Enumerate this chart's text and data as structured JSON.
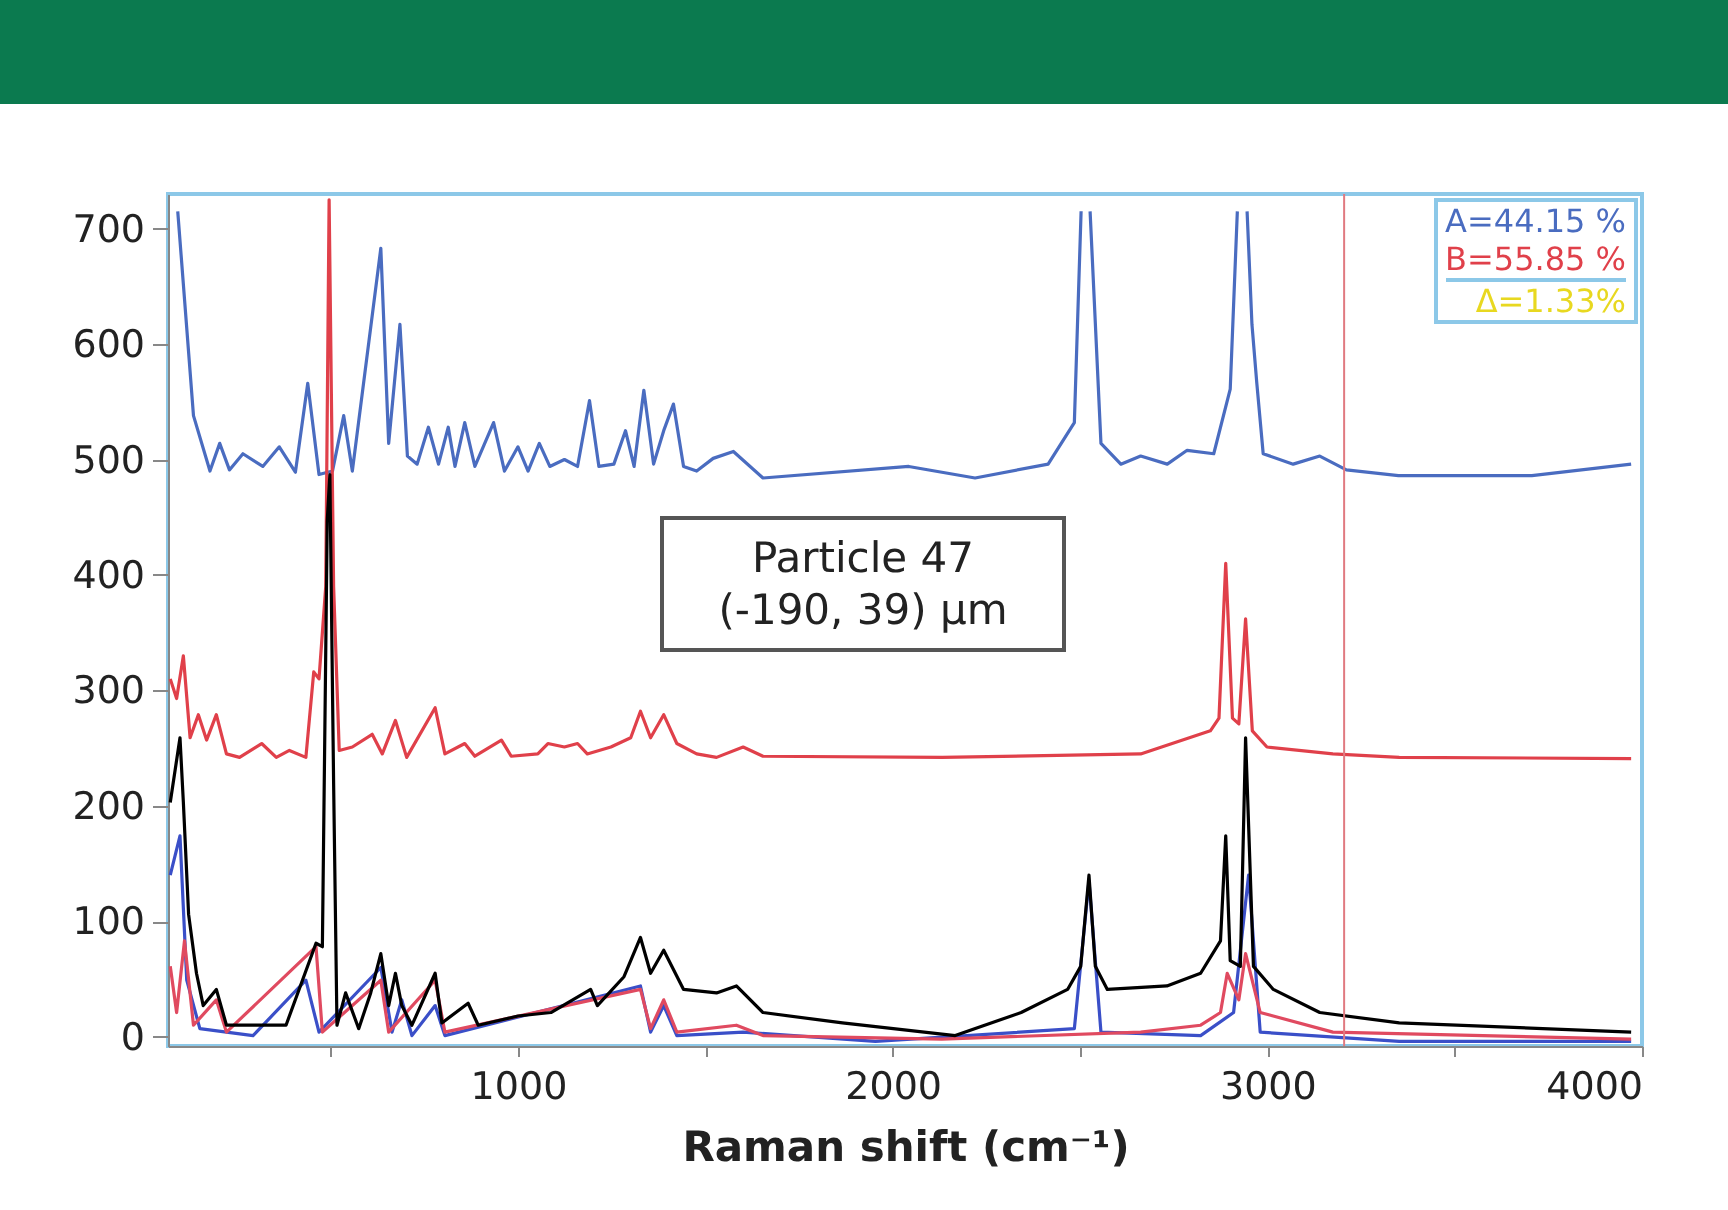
{
  "chart_data": {
    "type": "line",
    "xlabel": "Raman shift (cm⁻¹)",
    "xlim": [
      66,
      4000
    ],
    "ylim": [
      -8,
      730
    ],
    "xticks": [
      {
        "value": 500,
        "label": null
      },
      1000,
      {
        "value": 1500,
        "label": null
      },
      2000,
      {
        "value": 2500,
        "label": null
      },
      3000,
      {
        "value": 3500,
        "label": null
      },
      4000
    ],
    "yticks": [
      0,
      100,
      200,
      300,
      400,
      500,
      600,
      700
    ],
    "grid": false,
    "legend": "top right",
    "marker": "none",
    "line_style": "solid",
    "annotations": [
      "Particle 47\n(-190, 39) µm",
      "Δ=1.33%"
    ],
    "ref_lines": [
      {
        "axis": "x",
        "value": 3205,
        "color": "#e07a80"
      }
    ],
    "series": [
      {
        "name": "A=44.15 %",
        "color": "#4a6cc0",
        "x": [
          92,
          134,
          178,
          204,
          230,
          266,
          319,
          363,
          406,
          439,
          469,
          505,
          535,
          558,
          634,
          655,
          685,
          705,
          731,
          761,
          788,
          814,
          832,
          858,
          885,
          935,
          964,
          1000,
          1027,
          1057,
          1085,
          1124,
          1159,
          1191,
          1216,
          1256,
          1287,
          1310,
          1336,
          1362,
          1389,
          1415,
          1442,
          1477,
          1521,
          1575,
          1654,
          2043,
          2220,
          2415,
          2485,
          2503,
          2506,
          2524,
          2527,
          2556,
          2609,
          2662,
          2733,
          2786,
          2857,
          2901,
          2920,
          2924,
          2942,
          2946,
          2959,
          2972,
          2989,
          3069,
          3140,
          3211,
          3350,
          3706,
          3971
        ],
        "values": [
          715,
          538,
          490,
          514,
          491,
          505,
          494,
          511,
          489,
          566,
          487,
          490,
          538,
          490,
          683,
          514,
          617,
          503,
          496,
          528,
          496,
          528,
          494,
          532,
          494,
          532,
          490,
          511,
          490,
          514,
          494,
          500,
          494,
          551,
          494,
          496,
          525,
          494,
          560,
          496,
          525,
          548,
          494,
          490,
          501,
          507,
          484,
          494,
          484,
          496,
          532,
          715,
          null,
          null,
          715,
          514,
          496,
          503,
          496,
          508,
          505,
          561,
          715,
          null,
          null,
          715,
          617,
          566,
          505,
          496,
          503,
          491,
          486,
          486,
          496
        ]
      },
      {
        "name": "B=55.85 %",
        "color": "#e0404a",
        "x": [
          72,
          89,
          107,
          125,
          147,
          169,
          195,
          222,
          257,
          316,
          355,
          390,
          434,
          455,
          469,
          487,
          496,
          508,
          523,
          558,
          611,
          638,
          673,
          703,
          779,
          805,
          858,
          885,
          956,
          982,
          1053,
          1080,
          1124,
          1159,
          1185,
          1248,
          1301,
          1327,
          1354,
          1389,
          1424,
          1477,
          1530,
          1601,
          1654,
          2132,
          2662,
          2848,
          2871,
          2889,
          2907,
          2924,
          2942,
          2960,
          2999,
          3175,
          3352,
          3971
        ],
        "values": [
          310,
          293,
          330,
          259,
          279,
          257,
          279,
          245,
          242,
          254,
          242,
          248,
          242,
          316,
          310,
          390,
          725,
          390,
          248,
          251,
          262,
          245,
          274,
          242,
          285,
          245,
          254,
          243,
          257,
          243,
          245,
          254,
          251,
          254,
          245,
          251,
          259,
          282,
          259,
          279,
          254,
          245,
          242,
          251,
          243,
          242,
          245,
          265,
          276,
          410,
          276,
          271,
          362,
          265,
          251,
          245,
          242,
          241
        ]
      },
      {
        "color": "#3a4fc8",
        "x": [
          72,
          98,
          116,
          151,
          293,
          434,
          469,
          634,
          664,
          690,
          717,
          779,
          805,
          1327,
          1354,
          1389,
          1424,
          1601,
          1954,
          2485,
          2524,
          2556,
          2822,
          2910,
          2950,
          2981,
          3352,
          3971
        ],
        "values": [
          140,
          174,
          49,
          7,
          1,
          49,
          4,
          60,
          4,
          32,
          1,
          27,
          1,
          44,
          4,
          27,
          1,
          4,
          -4,
          7,
          135,
          4,
          1,
          21,
          140,
          4,
          -4,
          -4
        ]
      },
      {
        "color": "#e04a60",
        "x": [
          72,
          89,
          110,
          134,
          195,
          222,
          461,
          478,
          634,
          655,
          779,
          805,
          1327,
          1354,
          1389,
          1424,
          1583,
          1654,
          2131,
          2662,
          2822,
          2875,
          2893,
          2924,
          2942,
          2981,
          3175,
          3971
        ],
        "values": [
          61,
          21,
          83,
          10,
          32,
          4,
          78,
          4,
          49,
          4,
          49,
          4,
          41,
          7,
          32,
          4,
          10,
          1,
          -2,
          4,
          10,
          21,
          55,
          32,
          72,
          21,
          4,
          -2
        ]
      },
      {
        "color": "#000000",
        "x": [
          72,
          98,
          107,
          121,
          142,
          160,
          195,
          222,
          381,
          461,
          478,
          491,
          498,
          508,
          517,
          540,
          575,
          607,
          634,
          655,
          673,
          690,
          717,
          779,
          797,
          867,
          894,
          1000,
          1088,
          1194,
          1212,
          1283,
          1327,
          1354,
          1389,
          1442,
          1530,
          1583,
          1654,
          1866,
          2167,
          2343,
          2467,
          2502,
          2524,
          2541,
          2573,
          2732,
          2822,
          2875,
          2889,
          2901,
          2928,
          2942,
          2963,
          3016,
          3140,
          3352,
          3971
        ],
        "values": [
          203,
          259,
          203,
          106,
          55,
          27,
          41,
          10,
          10,
          81,
          78,
          447,
          487,
          220,
          10,
          38,
          7,
          38,
          72,
          27,
          55,
          27,
          10,
          55,
          12,
          29,
          10,
          18,
          21,
          41,
          27,
          52,
          86,
          55,
          75,
          41,
          38,
          44,
          21,
          12,
          1,
          21,
          41,
          61,
          140,
          61,
          41,
          44,
          55,
          83,
          174,
          66,
          61,
          259,
          61,
          41,
          21,
          12,
          4
        ]
      }
    ]
  }
}
